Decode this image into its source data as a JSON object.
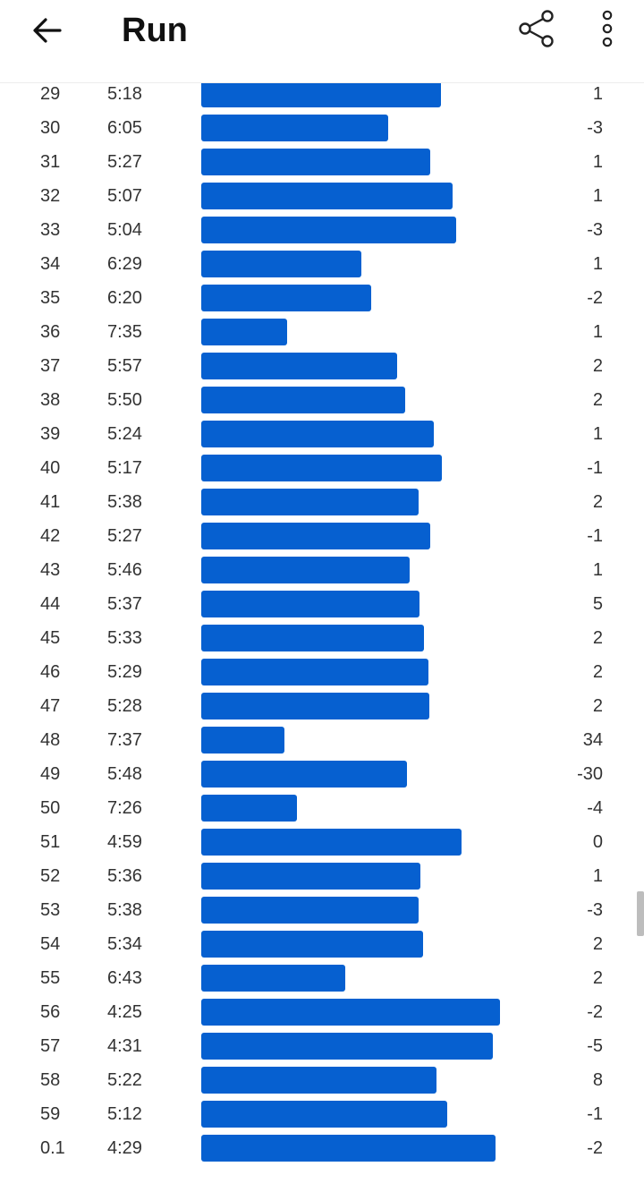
{
  "header": {
    "title": "Run",
    "back_icon": "arrow-left-icon",
    "share_icon": "share-icon",
    "more_icon": "more-vertical-icon"
  },
  "colors": {
    "bar": "#0660d0",
    "text": "#333333"
  },
  "max_pace_seconds": 475,
  "splits": [
    {
      "km": "29",
      "pace": "5:18",
      "elev": "1",
      "pace_s": 318
    },
    {
      "km": "30",
      "pace": "6:05",
      "elev": "-3",
      "pace_s": 365
    },
    {
      "km": "31",
      "pace": "5:27",
      "elev": "1",
      "pace_s": 327
    },
    {
      "km": "32",
      "pace": "5:07",
      "elev": "1",
      "pace_s": 307
    },
    {
      "km": "33",
      "pace": "5:04",
      "elev": "-3",
      "pace_s": 304
    },
    {
      "km": "34",
      "pace": "6:29",
      "elev": "1",
      "pace_s": 389
    },
    {
      "km": "35",
      "pace": "6:20",
      "elev": "-2",
      "pace_s": 380
    },
    {
      "km": "36",
      "pace": "7:35",
      "elev": "1",
      "pace_s": 455
    },
    {
      "km": "37",
      "pace": "5:57",
      "elev": "2",
      "pace_s": 357
    },
    {
      "km": "38",
      "pace": "5:50",
      "elev": "2",
      "pace_s": 350
    },
    {
      "km": "39",
      "pace": "5:24",
      "elev": "1",
      "pace_s": 324
    },
    {
      "km": "40",
      "pace": "5:17",
      "elev": "-1",
      "pace_s": 317
    },
    {
      "km": "41",
      "pace": "5:38",
      "elev": "2",
      "pace_s": 338
    },
    {
      "km": "42",
      "pace": "5:27",
      "elev": "-1",
      "pace_s": 327
    },
    {
      "km": "43",
      "pace": "5:46",
      "elev": "1",
      "pace_s": 346
    },
    {
      "km": "44",
      "pace": "5:37",
      "elev": "5",
      "pace_s": 337
    },
    {
      "km": "45",
      "pace": "5:33",
      "elev": "2",
      "pace_s": 333
    },
    {
      "km": "46",
      "pace": "5:29",
      "elev": "2",
      "pace_s": 329
    },
    {
      "km": "47",
      "pace": "5:28",
      "elev": "2",
      "pace_s": 328
    },
    {
      "km": "48",
      "pace": "7:37",
      "elev": "34",
      "pace_s": 457
    },
    {
      "km": "49",
      "pace": "5:48",
      "elev": "-30",
      "pace_s": 348
    },
    {
      "km": "50",
      "pace": "7:26",
      "elev": "-4",
      "pace_s": 446
    },
    {
      "km": "51",
      "pace": "4:59",
      "elev": "0",
      "pace_s": 299
    },
    {
      "km": "52",
      "pace": "5:36",
      "elev": "1",
      "pace_s": 336
    },
    {
      "km": "53",
      "pace": "5:38",
      "elev": "-3",
      "pace_s": 338
    },
    {
      "km": "54",
      "pace": "5:34",
      "elev": "2",
      "pace_s": 334
    },
    {
      "km": "55",
      "pace": "6:43",
      "elev": "2",
      "pace_s": 403
    },
    {
      "km": "56",
      "pace": "4:25",
      "elev": "-2",
      "pace_s": 265
    },
    {
      "km": "57",
      "pace": "4:31",
      "elev": "-5",
      "pace_s": 271
    },
    {
      "km": "58",
      "pace": "5:22",
      "elev": "8",
      "pace_s": 322
    },
    {
      "km": "59",
      "pace": "5:12",
      "elev": "-1",
      "pace_s": 312
    },
    {
      "km": "0.1",
      "pace": "4:29",
      "elev": "-2",
      "pace_s": 269
    }
  ]
}
